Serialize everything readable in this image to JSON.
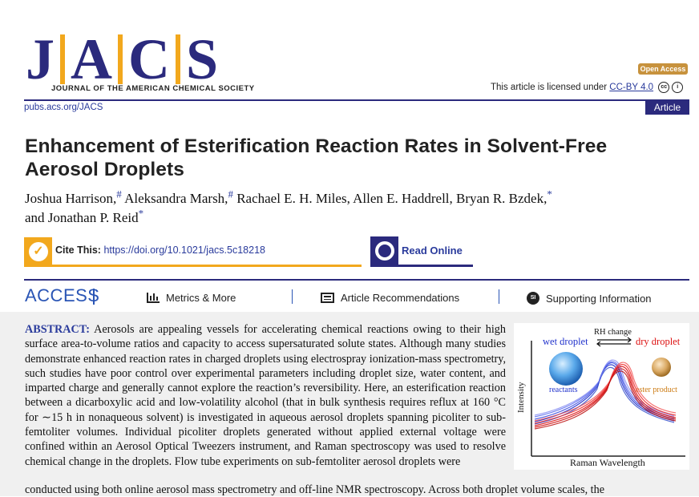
{
  "header": {
    "logo_letters": [
      "J",
      "A",
      "C",
      "S"
    ],
    "journal_name": "JOURNAL OF THE AMERICAN CHEMICAL SOCIETY",
    "open_access": "Open Access",
    "license_prefix": "This article is licensed under",
    "license_link": "CC-BY 4.0",
    "site": "pubs.acs.org/JACS",
    "article_type": "Article"
  },
  "title": "Enhancement of Esterification Reaction Rates in Solvent-Free Aerosol Droplets",
  "authors": [
    {
      "name": "Joshua Harrison,",
      "mark": "#"
    },
    {
      "name": "Aleksandra Marsh,",
      "mark": "#"
    },
    {
      "name": "Rachael E. H. Miles,",
      "mark": ""
    },
    {
      "name": "Allen E. Haddrell,",
      "mark": ""
    },
    {
      "name": "Bryan R. Bzdek,",
      "mark": "*"
    },
    {
      "name": "and Jonathan P. Reid",
      "mark": "*"
    }
  ],
  "cite": {
    "label": "Cite This:",
    "doi": "https://doi.org/10.1021/jacs.5c18218"
  },
  "read_online": "Read Online",
  "access_bar": {
    "access": "ACCESS",
    "metrics": "Metrics & More",
    "recommendations": "Article Recommendations",
    "supporting": "Supporting Information",
    "si_badge": "SI"
  },
  "abstract": {
    "label": "ABSTRACT:",
    "text": "Aerosols are appealing vessels for accelerating chemical reactions owing to their high surface area-to-volume ratios and capacity to access supersaturated solute states. Although many studies demonstrate enhanced reaction rates in charged droplets using electrospray ionization-mass spectrometry, such studies have poor control over experimental parameters including droplet size, water content, and imparted charge and generally cannot explore the reaction’s reversibility. Here, an esterification reaction between a dicarboxylic acid and low-volatility alcohol (that in bulk synthesis requires reflux at 160 °C for ∼15 h in nonaqueous solvent) is investigated in aqueous aerosol droplets spanning picoliter to sub-femtoliter volumes. Individual picoliter droplets generated without applied external voltage were confined within an Aerosol Optical Tweezers instrument, and Raman spectroscopy was used to resolve chemical change in the droplets. Flow tube experiments on sub-femtoliter aerosol droplets were",
    "last_line": "conducted using both online aerosol mass spectrometry and off-line NMR spectroscopy. Across both droplet volume scales, the"
  },
  "toc_graphic": {
    "rh_change": "RH change",
    "wet_droplet": "wet droplet",
    "dry_droplet": "dry droplet",
    "reactants": "reactants",
    "ester_product": "ester product",
    "y_axis": "Intensity",
    "x_axis": "Raman Wavelength",
    "colors": {
      "wet": "#2233cc",
      "dry": "#dd1111"
    }
  }
}
